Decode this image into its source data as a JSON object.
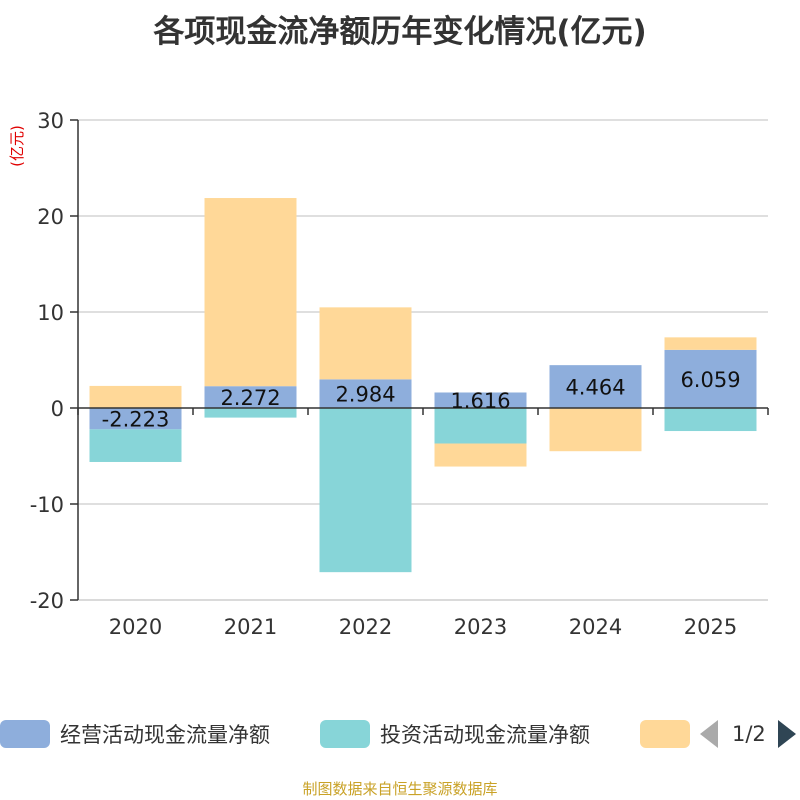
{
  "chart_data": {
    "type": "bar",
    "stacked": true,
    "title": "各项现金流净额历年变化情况(亿元)",
    "ylabel": "(亿元)",
    "ylim": [
      -20,
      30
    ],
    "yticks": [
      -20,
      -10,
      0,
      10,
      20,
      30
    ],
    "grid": true,
    "categories": [
      "2020",
      "2021",
      "2022",
      "2023",
      "2024",
      "2025"
    ],
    "series": [
      {
        "name": "经营活动现金流量净额",
        "color": "#8eaedc",
        "values": [
          -2.223,
          2.272,
          2.984,
          1.616,
          4.464,
          6.059
        ],
        "labels": [
          "-2.223",
          "2.272",
          "2.984",
          "1.616",
          "4.464",
          "6.059"
        ]
      },
      {
        "name": "投资活动现金流量净额",
        "color": "#87d5d8",
        "values": [
          -3.4,
          -1.0,
          -17.1,
          -3.7,
          0.0,
          -2.4
        ]
      },
      {
        "name": "",
        "color": "#ffd898",
        "values": [
          2.3,
          19.6,
          7.5,
          -2.4,
          -4.5,
          1.3
        ]
      }
    ]
  },
  "legend": {
    "items": [
      {
        "label": "经营活动现金流量净额",
        "color": "#8eaedc"
      },
      {
        "label": "投资活动现金流量净额",
        "color": "#87d5d8"
      },
      {
        "label": "",
        "color": "#ffd898"
      }
    ],
    "page": "1/2"
  },
  "source_note": "制图数据来自恒生聚源数据库"
}
